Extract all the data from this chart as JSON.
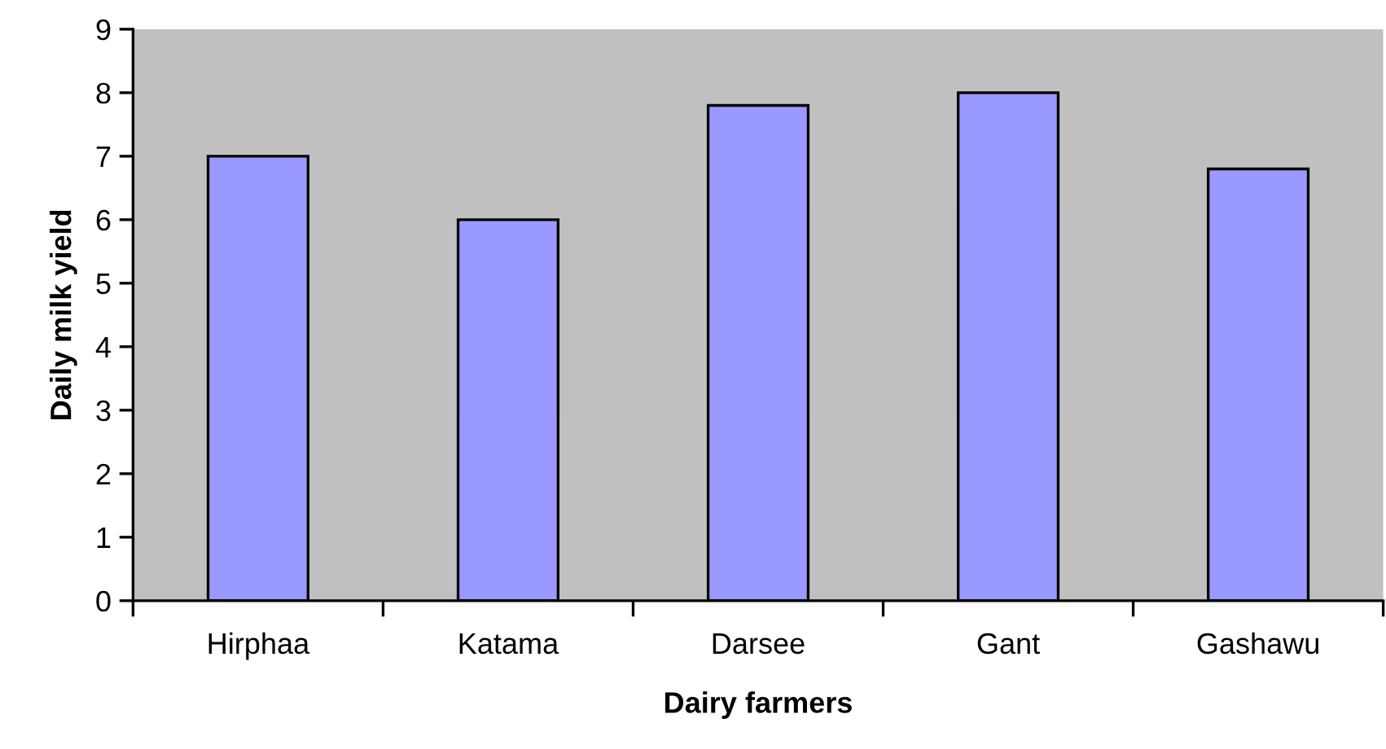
{
  "chart_data": {
    "type": "bar",
    "xlabel": "Dairy farmers",
    "ylabel": "Daily milk yield",
    "categories": [
      "Hirphaa",
      "Katama",
      "Darsee",
      "Gant",
      "Gashawu"
    ],
    "values": [
      7,
      6,
      7.8,
      8,
      6.8
    ],
    "color": "#9999ff",
    "ylim": [
      0,
      9
    ],
    "yticks": [
      0,
      1,
      2,
      3,
      4,
      5,
      6,
      7,
      8,
      9
    ],
    "grid": false,
    "legend": false
  }
}
